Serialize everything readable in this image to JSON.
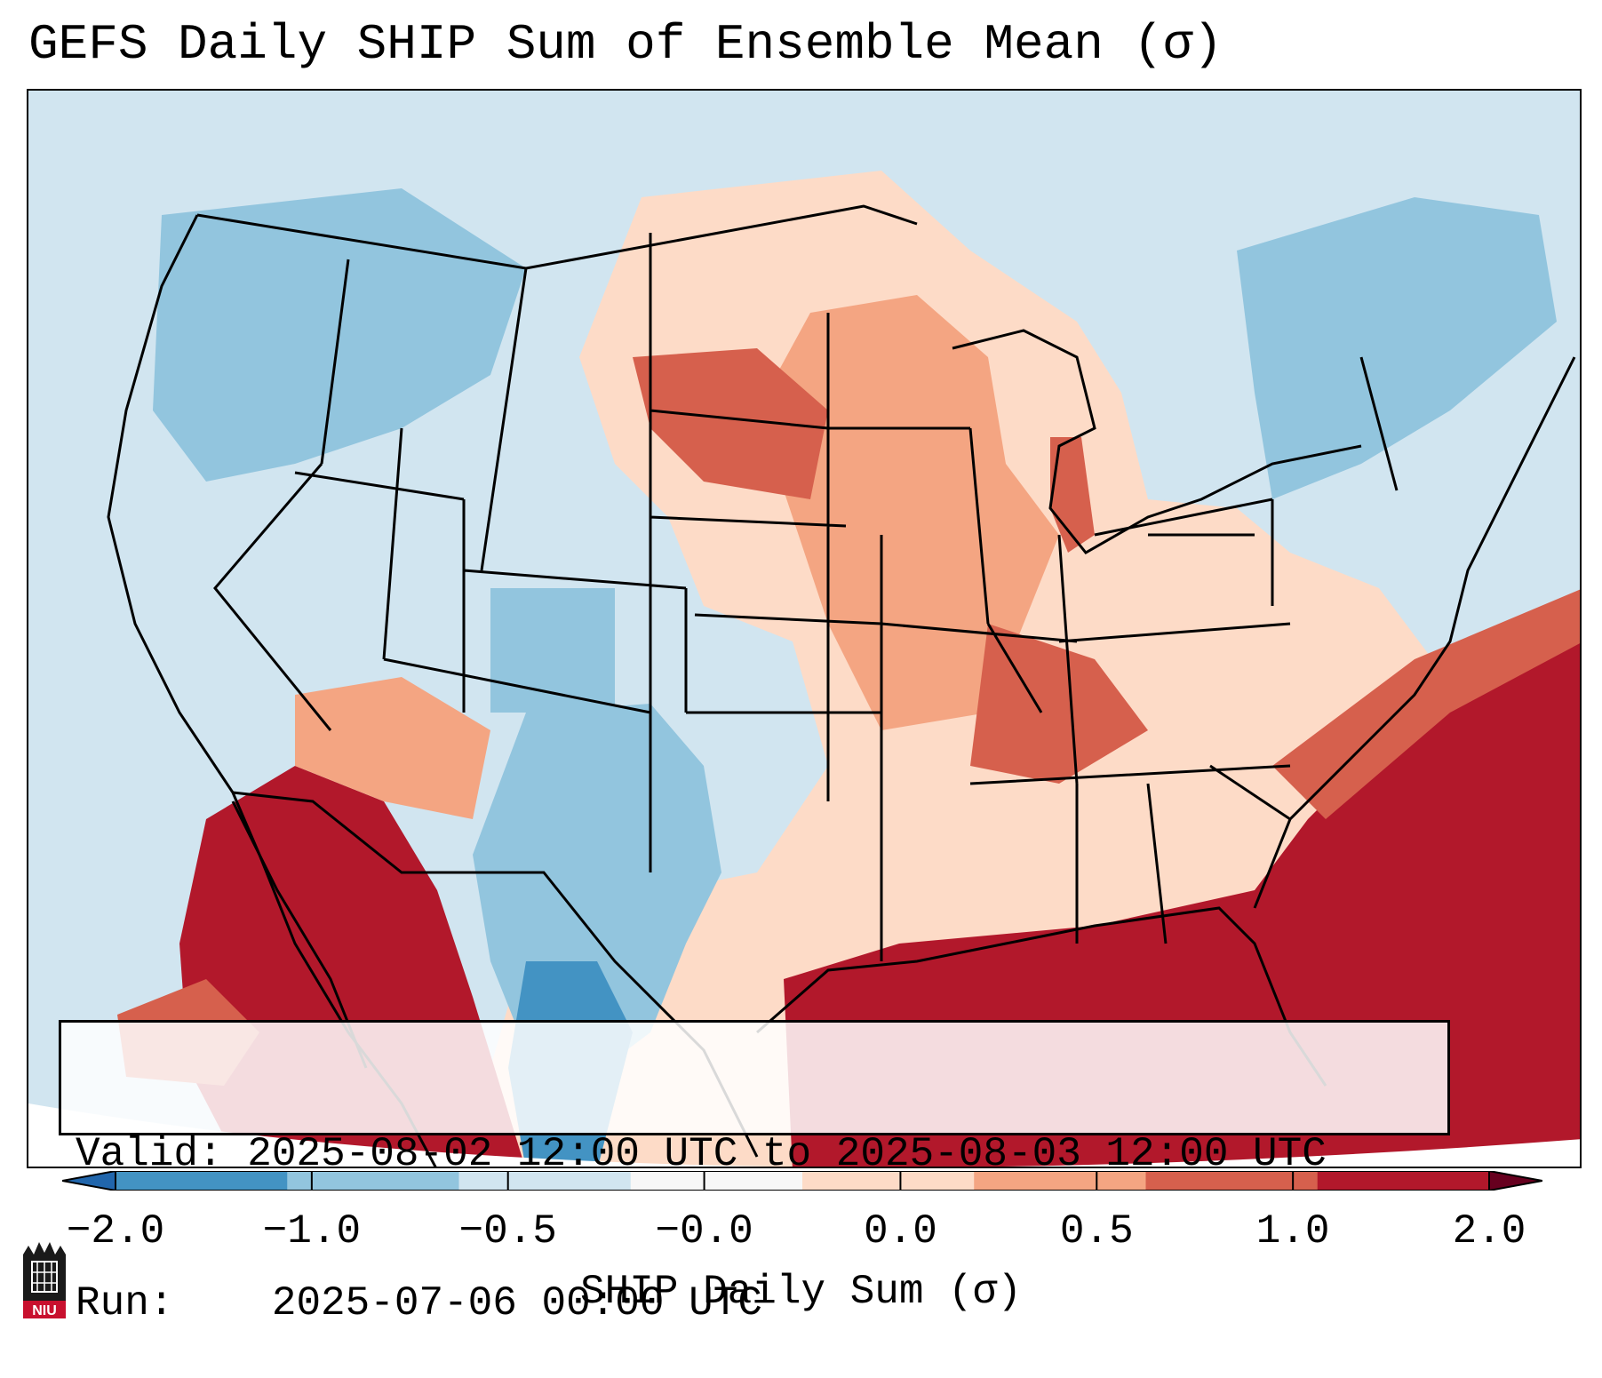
{
  "title": "GEFS Daily SHIP Sum of Ensemble Mean (σ)",
  "info": {
    "valid_label": "Valid:",
    "valid_value": "2025-08-02 12:00 UTC to 2025-08-03 12:00 UTC",
    "run_label": "Run:",
    "run_value": "2025-07-06 00:00 UTC"
  },
  "colorbar": {
    "label": "SHIP Daily Sum (σ)",
    "ticks": [
      "−2.0",
      "−1.0",
      "−0.5",
      "−0.0",
      "0.0",
      "0.5",
      "1.0",
      "2.0"
    ],
    "colors": [
      "#4393c3",
      "#92c5de",
      "#d1e5f0",
      "#f7f7f7",
      "#fddbc7",
      "#f4a582",
      "#d6604d",
      "#b2182b"
    ],
    "extend": "both"
  },
  "logo": {
    "text": "NIU"
  }
}
